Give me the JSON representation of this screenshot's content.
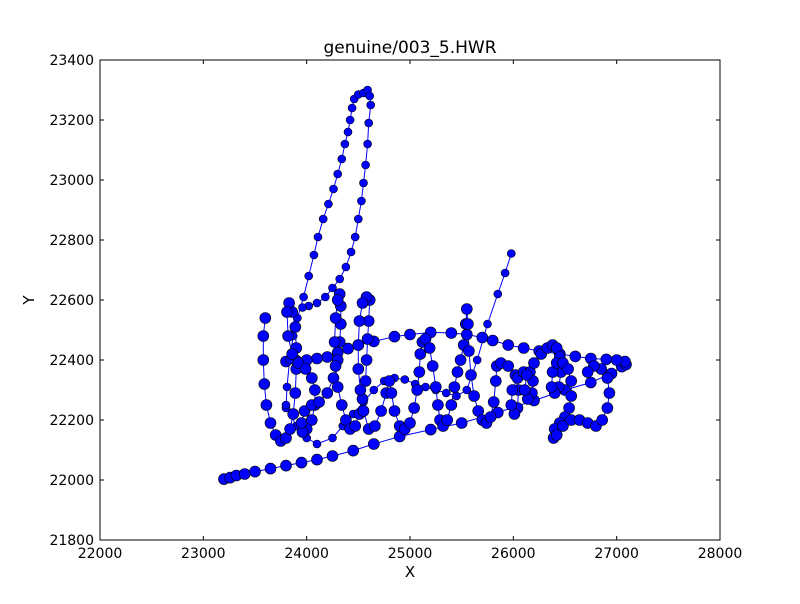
{
  "chart_data": {
    "type": "scatter",
    "title": "genuine/003_5.HWR",
    "xlabel": "X",
    "ylabel": "Y",
    "xlim": [
      22000,
      28000
    ],
    "ylim": [
      21800,
      23400
    ],
    "xticks": [
      22000,
      23000,
      24000,
      25000,
      26000,
      27000,
      28000
    ],
    "yticks": [
      21800,
      22000,
      22200,
      22400,
      22600,
      22800,
      23000,
      23200,
      23400
    ],
    "xtick_labels": [
      "22000",
      "23000",
      "24000",
      "25000",
      "26000",
      "27000",
      "28000"
    ],
    "ytick_labels": [
      "21800",
      "22000",
      "22200",
      "22400",
      "22600",
      "22800",
      "23000",
      "23200",
      "23400"
    ],
    "grid": false,
    "legend": false,
    "marker_color": "#0000ff",
    "line_color": "#0000ff",
    "marker_edge_color": "#000000",
    "strokes": [
      {
        "points": [
          [
            23200,
            22003
          ],
          [
            23260,
            22008
          ],
          [
            23320,
            22015
          ],
          [
            23400,
            22020
          ],
          [
            23500,
            22028
          ],
          [
            23650,
            22038
          ],
          [
            23800,
            22048
          ],
          [
            23950,
            22058
          ],
          [
            24100,
            22068
          ],
          [
            24250,
            22080
          ],
          [
            24450,
            22098
          ],
          [
            24650,
            22120
          ],
          [
            24900,
            22145
          ],
          [
            25200,
            22168
          ],
          [
            25500,
            22190
          ],
          [
            25850,
            22225
          ],
          [
            26200,
            22265
          ],
          [
            26500,
            22300
          ],
          [
            26750,
            22325
          ],
          [
            26950,
            22355
          ],
          [
            27050,
            22378
          ],
          [
            27090,
            22385
          ],
          [
            27080,
            22395
          ],
          [
            27000,
            22400
          ],
          [
            26900,
            22402
          ],
          [
            26750,
            22405
          ],
          [
            26600,
            22412
          ],
          [
            26450,
            22420
          ],
          [
            26250,
            22430
          ],
          [
            26100,
            22440
          ],
          [
            25950,
            22450
          ],
          [
            25800,
            22465
          ],
          [
            25700,
            22475
          ],
          [
            25550,
            22485
          ],
          [
            25400,
            22490
          ],
          [
            25200,
            22492
          ],
          [
            25000,
            22485
          ],
          [
            24850,
            22478
          ],
          [
            24650,
            22462
          ],
          [
            24500,
            22450
          ],
          [
            24400,
            22438
          ],
          [
            24300,
            22425
          ],
          [
            24200,
            22410
          ],
          [
            24100,
            22405
          ],
          [
            24000,
            22400
          ],
          [
            23900,
            22398
          ],
          [
            23800,
            22395
          ]
        ],
        "size": "large"
      },
      {
        "points": [
          [
            23800,
            22240
          ],
          [
            23810,
            22310
          ],
          [
            23835,
            22400
          ],
          [
            23870,
            22480
          ],
          [
            23910,
            22540
          ],
          [
            23970,
            22610
          ],
          [
            24020,
            22680
          ],
          [
            24070,
            22750
          ],
          [
            24110,
            22810
          ],
          [
            24160,
            22870
          ],
          [
            24210,
            22920
          ],
          [
            24260,
            22970
          ],
          [
            24300,
            23020
          ],
          [
            24340,
            23070
          ],
          [
            24370,
            23120
          ],
          [
            24400,
            23160
          ],
          [
            24420,
            23200
          ],
          [
            24440,
            23240
          ],
          [
            24460,
            23270
          ],
          [
            24500,
            23285
          ],
          [
            24550,
            23290
          ],
          [
            24590,
            23300
          ],
          [
            24610,
            23280
          ],
          [
            24620,
            23250
          ],
          [
            24600,
            23190
          ],
          [
            24590,
            23120
          ],
          [
            24570,
            23050
          ],
          [
            24550,
            22990
          ],
          [
            24530,
            22930
          ],
          [
            24500,
            22870
          ],
          [
            24470,
            22810
          ],
          [
            24430,
            22760
          ],
          [
            24380,
            22710
          ],
          [
            24320,
            22670
          ],
          [
            24250,
            22640
          ],
          [
            24180,
            22610
          ],
          [
            24100,
            22590
          ],
          [
            24020,
            22580
          ],
          [
            23960,
            22575
          ]
        ],
        "size": "small"
      },
      {
        "points": [
          [
            23800,
            22250
          ],
          [
            23900,
            22180
          ],
          [
            24000,
            22140
          ],
          [
            24100,
            22120
          ],
          [
            24250,
            22140
          ],
          [
            24350,
            22180
          ],
          [
            24450,
            22220
          ],
          [
            24550,
            22260
          ],
          [
            24650,
            22300
          ],
          [
            24750,
            22330
          ],
          [
            24850,
            22340
          ],
          [
            24950,
            22335
          ],
          [
            25050,
            22320
          ],
          [
            25150,
            22310
          ],
          [
            25250,
            22300
          ],
          [
            25350,
            22290
          ],
          [
            25450,
            22280
          ],
          [
            25550,
            22300
          ],
          [
            25650,
            22400
          ],
          [
            25750,
            22520
          ],
          [
            25850,
            22620
          ],
          [
            25920,
            22690
          ],
          [
            25980,
            22755
          ]
        ],
        "size": "small"
      },
      {
        "points": [
          [
            23600,
            22540
          ],
          [
            23580,
            22480
          ],
          [
            23580,
            22400
          ],
          [
            23590,
            22320
          ],
          [
            23610,
            22250
          ],
          [
            23650,
            22190
          ],
          [
            23700,
            22150
          ],
          [
            23750,
            22130
          ],
          [
            23800,
            22140
          ],
          [
            23840,
            22170
          ],
          [
            23870,
            22220
          ],
          [
            23890,
            22290
          ],
          [
            23900,
            22370
          ],
          [
            23900,
            22440
          ],
          [
            23890,
            22510
          ],
          [
            23860,
            22560
          ],
          [
            23830,
            22590
          ],
          [
            23810,
            22560
          ],
          [
            23820,
            22480
          ],
          [
            23860,
            22420
          ],
          [
            23920,
            22390
          ],
          [
            23990,
            22370
          ],
          [
            24050,
            22340
          ],
          [
            24080,
            22300
          ],
          [
            24080,
            22250
          ],
          [
            24050,
            22200
          ],
          [
            24000,
            22170
          ],
          [
            23960,
            22160
          ],
          [
            23950,
            22190
          ],
          [
            23980,
            22230
          ],
          [
            24050,
            22250
          ],
          [
            24120,
            22260
          ],
          [
            24200,
            22290
          ],
          [
            24260,
            22340
          ],
          [
            24300,
            22400
          ],
          [
            24320,
            22460
          ],
          [
            24330,
            22520
          ],
          [
            24330,
            22580
          ],
          [
            24320,
            22620
          ],
          [
            24300,
            22600
          ],
          [
            24280,
            22540
          ],
          [
            24270,
            22460
          ],
          [
            24280,
            22380
          ],
          [
            24300,
            22310
          ],
          [
            24340,
            22250
          ],
          [
            24380,
            22200
          ],
          [
            24420,
            22170
          ],
          [
            24470,
            22180
          ],
          [
            24510,
            22220
          ],
          [
            24540,
            22270
          ],
          [
            24570,
            22330
          ],
          [
            24580,
            22400
          ],
          [
            24590,
            22470
          ],
          [
            24600,
            22530
          ],
          [
            24610,
            22600
          ],
          [
            24580,
            22610
          ],
          [
            24540,
            22590
          ],
          [
            24510,
            22530
          ],
          [
            24500,
            22450
          ],
          [
            24500,
            22370
          ],
          [
            24520,
            22300
          ],
          [
            24550,
            22230
          ],
          [
            24600,
            22170
          ],
          [
            24660,
            22180
          ],
          [
            24720,
            22230
          ],
          [
            24770,
            22290
          ],
          [
            24800,
            22330
          ],
          [
            24820,
            22290
          ],
          [
            24850,
            22230
          ],
          [
            24900,
            22180
          ],
          [
            24950,
            22170
          ],
          [
            25000,
            22190
          ],
          [
            25040,
            22240
          ],
          [
            25070,
            22300
          ],
          [
            25090,
            22360
          ],
          [
            25100,
            22420
          ],
          [
            25120,
            22460
          ],
          [
            25150,
            22470
          ],
          [
            25190,
            22440
          ],
          [
            25220,
            22380
          ],
          [
            25250,
            22310
          ],
          [
            25270,
            22250
          ],
          [
            25290,
            22200
          ],
          [
            25320,
            22180
          ],
          [
            25360,
            22200
          ],
          [
            25400,
            22250
          ],
          [
            25430,
            22310
          ],
          [
            25460,
            22360
          ],
          [
            25490,
            22400
          ],
          [
            25520,
            22450
          ],
          [
            25540,
            22520
          ],
          [
            25550,
            22570
          ],
          [
            25560,
            22520
          ],
          [
            25570,
            22430
          ],
          [
            25590,
            22350
          ],
          [
            25620,
            22280
          ],
          [
            25660,
            22230
          ],
          [
            25700,
            22200
          ],
          [
            25740,
            22190
          ],
          [
            25780,
            22210
          ],
          [
            25810,
            22260
          ],
          [
            25830,
            22330
          ],
          [
            25840,
            22380
          ],
          [
            25880,
            22390
          ],
          [
            25950,
            22380
          ],
          [
            26020,
            22350
          ],
          [
            26050,
            22300
          ],
          [
            26040,
            22240
          ],
          [
            26010,
            22220
          ],
          [
            25980,
            22250
          ],
          [
            25990,
            22300
          ],
          [
            26040,
            22340
          ],
          [
            26100,
            22360
          ],
          [
            26160,
            22360
          ],
          [
            26190,
            22330
          ],
          [
            26180,
            22290
          ],
          [
            26140,
            22270
          ],
          [
            26110,
            22300
          ],
          [
            26130,
            22350
          ],
          [
            26200,
            22390
          ],
          [
            26270,
            22420
          ],
          [
            26330,
            22440
          ],
          [
            26380,
            22450
          ],
          [
            26420,
            22440
          ],
          [
            26450,
            22410
          ],
          [
            26460,
            22360
          ],
          [
            26440,
            22310
          ],
          [
            26400,
            22290
          ],
          [
            26370,
            22310
          ],
          [
            26380,
            22360
          ],
          [
            26420,
            22390
          ],
          [
            26480,
            22390
          ],
          [
            26530,
            22370
          ],
          [
            26560,
            22330
          ],
          [
            26560,
            22280
          ],
          [
            26540,
            22240
          ],
          [
            26500,
            22210
          ],
          [
            26450,
            22190
          ],
          [
            26400,
            22170
          ],
          [
            26390,
            22140
          ],
          [
            26420,
            22150
          ],
          [
            26480,
            22180
          ],
          [
            26560,
            22200
          ],
          [
            26640,
            22200
          ],
          [
            26720,
            22190
          ],
          [
            26800,
            22180
          ],
          [
            26860,
            22200
          ],
          [
            26910,
            22240
          ],
          [
            26930,
            22290
          ],
          [
            26910,
            22340
          ],
          [
            26850,
            22370
          ],
          [
            26780,
            22380
          ],
          [
            26720,
            22360
          ]
        ],
        "size": "large"
      }
    ]
  }
}
